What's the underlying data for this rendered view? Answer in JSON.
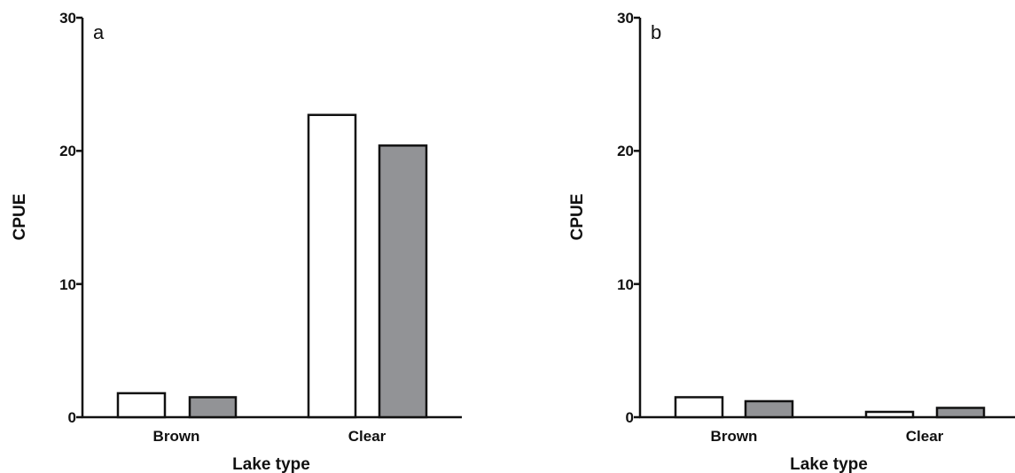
{
  "chart_data": [
    {
      "type": "bar",
      "panel_label": "a",
      "categories": [
        "Brown",
        "Clear"
      ],
      "series": [
        {
          "values": [
            1.8,
            22.7
          ],
          "color": "#ffffff"
        },
        {
          "values": [
            1.5,
            20.4
          ],
          "color": "#929396"
        }
      ],
      "xlabel": "Lake type",
      "ylabel": "CPUE",
      "ylim": [
        0,
        30
      ],
      "yticks": [
        "0",
        "10",
        "20",
        "30"
      ],
      "grid": false,
      "legend": "none"
    },
    {
      "type": "bar",
      "panel_label": "b",
      "categories": [
        "Brown",
        "Clear"
      ],
      "series": [
        {
          "values": [
            1.5,
            0.4
          ],
          "color": "#ffffff"
        },
        {
          "values": [
            1.2,
            0.7
          ],
          "color": "#929396"
        }
      ],
      "xlabel": "Lake type",
      "ylabel": "CPUE",
      "ylim": [
        0,
        30
      ],
      "yticks": [
        "0",
        "10",
        "20",
        "30"
      ],
      "grid": false,
      "legend": "none"
    }
  ]
}
